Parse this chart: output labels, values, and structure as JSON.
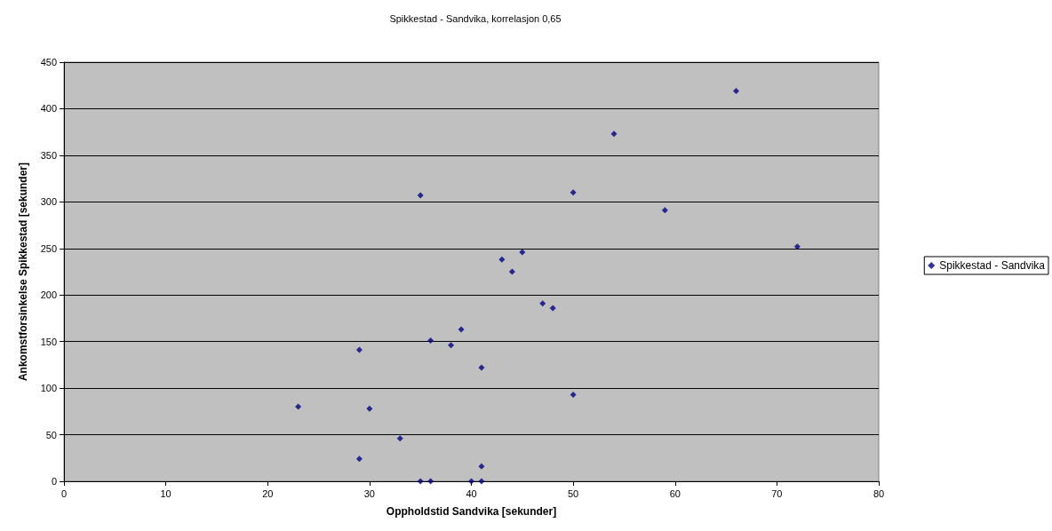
{
  "chart_data": {
    "type": "scatter",
    "title": "Spikkestad - Sandvika, korrelasjon 0,65",
    "xlabel": "Oppholdstid Sandvika [sekunder]",
    "ylabel": "Ankomstforsinkelse Spikkestad [sekunder]",
    "xlim": [
      0,
      80
    ],
    "xticks": [
      0,
      10,
      20,
      30,
      40,
      50,
      60,
      70,
      80
    ],
    "ylim": [
      0,
      450
    ],
    "yticks": [
      0,
      50,
      100,
      150,
      200,
      250,
      300,
      350,
      400,
      450
    ],
    "grid": "y",
    "legend": "right",
    "marker": "diamond",
    "series": [
      {
        "name": "Spikkestad - Sandvika",
        "color": "#000080",
        "x": [
          23,
          29,
          29,
          30,
          33,
          35,
          35,
          36,
          36,
          38,
          39,
          40,
          41,
          41,
          41,
          43,
          44,
          45,
          47,
          48,
          50,
          50,
          54,
          59,
          66,
          72
        ],
        "values": [
          80,
          141,
          24,
          78,
          46,
          307,
          0,
          151,
          0,
          146,
          163,
          0,
          122,
          16,
          0,
          238,
          225,
          246,
          191,
          186,
          310,
          93,
          373,
          291,
          419,
          252
        ]
      }
    ]
  }
}
